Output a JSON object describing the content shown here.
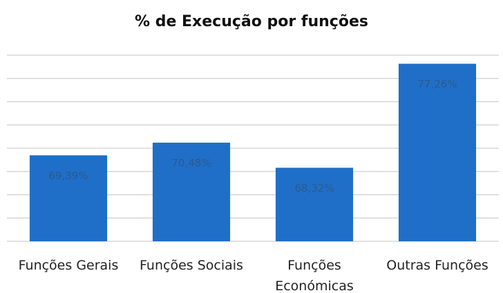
{
  "chart_data": {
    "type": "bar",
    "title": "% de Execução por funções",
    "categories": [
      "Funções Gerais",
      "Funções Sociais",
      "Funções Económicas",
      "Outras Funções"
    ],
    "values": [
      69.39,
      70.48,
      68.32,
      77.26
    ],
    "value_labels": [
      "69,39%",
      "70,48%",
      "68,32%",
      "77,26%"
    ],
    "color": "#1f6fc8",
    "ylim": [
      62,
      78
    ],
    "yticks": [
      62,
      64,
      66,
      68,
      70,
      72,
      74,
      76,
      78
    ],
    "grid": true
  }
}
